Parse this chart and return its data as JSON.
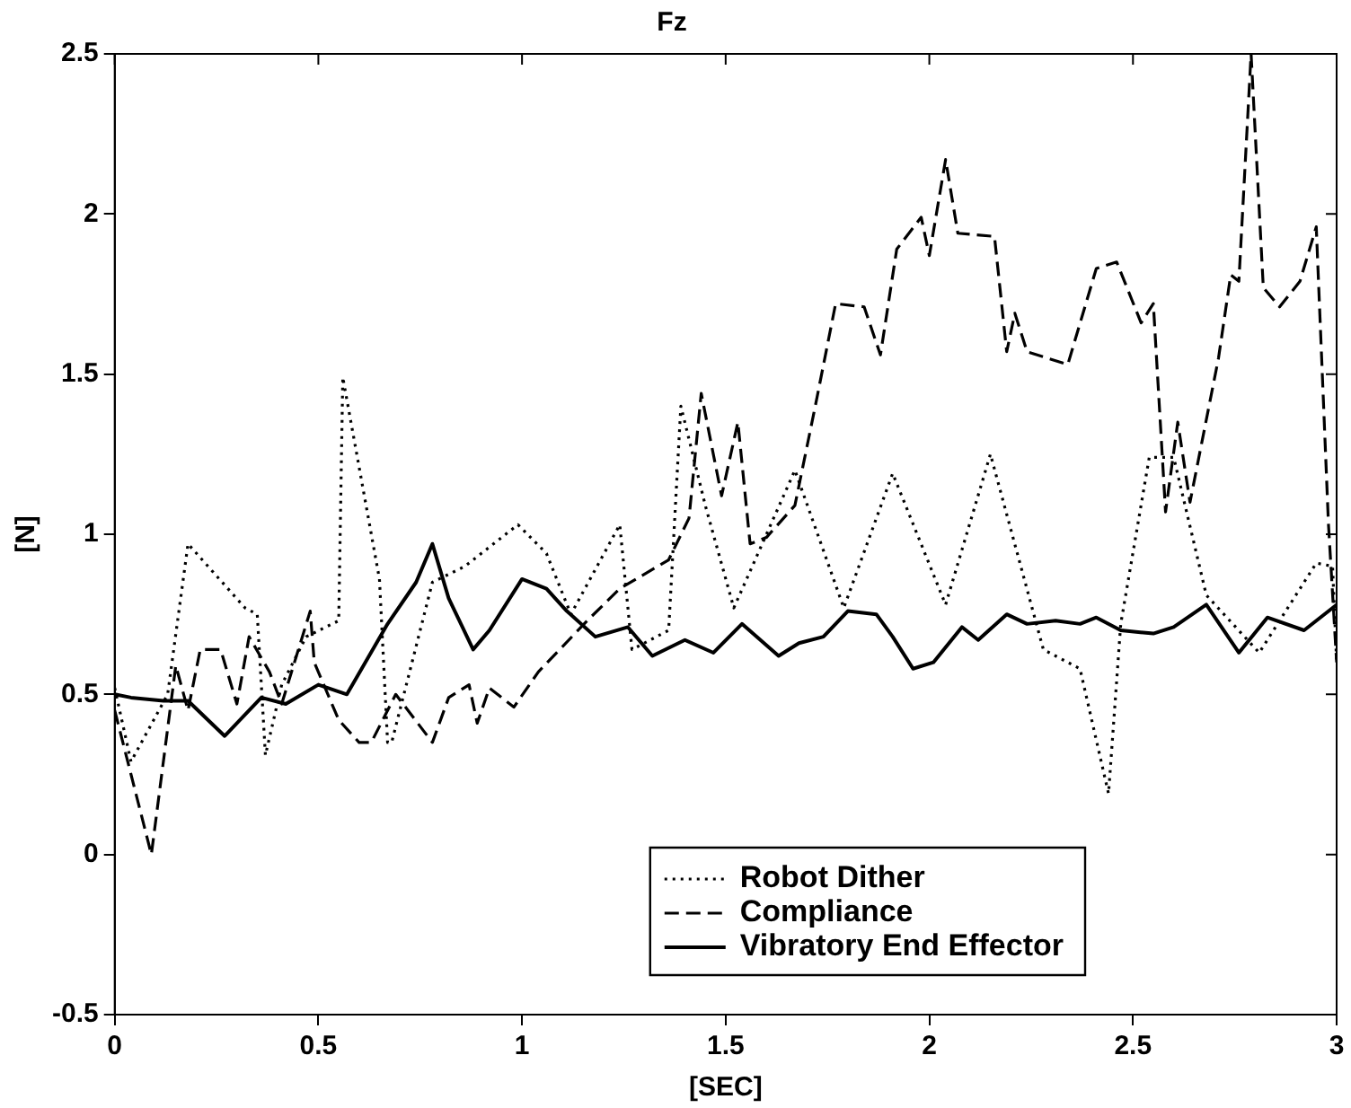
{
  "chart_data": {
    "type": "line",
    "title": "Fz",
    "xlabel": "[SEC]",
    "ylabel": "[N]",
    "xlim": [
      0,
      3
    ],
    "xticks": [
      0,
      0.5,
      1,
      1.5,
      2,
      2.5,
      3
    ],
    "ylim": [
      -0.5,
      2.5
    ],
    "yticks": [
      -0.5,
      0,
      0.5,
      1,
      1.5,
      2,
      2.5
    ],
    "grid": false,
    "legend": "bottom right",
    "marker": "none",
    "series": [
      {
        "name": "Robot Dither",
        "color": "#000000",
        "line_style": "dotted",
        "x": [
          0,
          0.04,
          0.13,
          0.18,
          0.32,
          0.35,
          0.37,
          0.41,
          0.47,
          0.55,
          0.56,
          0.65,
          0.67,
          0.68,
          0.78,
          0.86,
          0.99,
          1.06,
          1.12,
          1.24,
          1.27,
          1.36,
          1.39,
          1.45,
          1.52,
          1.67,
          1.79,
          1.91,
          2.04,
          2.15,
          2.28,
          2.37,
          2.44,
          2.47,
          2.54,
          2.6,
          2.68,
          2.81,
          2.95,
          2.99,
          3
        ],
        "values": [
          0.52,
          0.29,
          0.5,
          0.97,
          0.77,
          0.75,
          0.31,
          0.53,
          0.68,
          0.73,
          1.49,
          0.86,
          0.35,
          0.35,
          0.85,
          0.9,
          1.03,
          0.94,
          0.75,
          1.03,
          0.64,
          0.7,
          1.4,
          1.09,
          0.77,
          1.2,
          0.77,
          1.19,
          0.78,
          1.25,
          0.64,
          0.58,
          0.19,
          0.72,
          1.24,
          1.24,
          0.81,
          0.63,
          0.91,
          0.9,
          0.6
        ]
      },
      {
        "name": "Compliance",
        "color": "#000000",
        "line_style": "dashed",
        "x": [
          0,
          0.09,
          0.15,
          0.18,
          0.21,
          0.26,
          0.3,
          0.33,
          0.38,
          0.41,
          0.48,
          0.49,
          0.55,
          0.6,
          0.63,
          0.69,
          0.78,
          0.82,
          0.87,
          0.89,
          0.92,
          0.98,
          1.04,
          1.16,
          1.24,
          1.36,
          1.41,
          1.44,
          1.49,
          1.53,
          1.56,
          1.6,
          1.67,
          1.72,
          1.77,
          1.84,
          1.88,
          1.92,
          1.98,
          2.0,
          2.04,
          2.07,
          2.16,
          2.19,
          2.21,
          2.24,
          2.34,
          2.41,
          2.46,
          2.52,
          2.55,
          2.58,
          2.61,
          2.64,
          2.71,
          2.74,
          2.76,
          2.79,
          2.82,
          2.86,
          2.91,
          2.95,
          2.98,
          3
        ],
        "values": [
          0.45,
          0.0,
          0.59,
          0.45,
          0.64,
          0.64,
          0.47,
          0.68,
          0.57,
          0.47,
          0.76,
          0.6,
          0.42,
          0.35,
          0.35,
          0.5,
          0.35,
          0.49,
          0.53,
          0.41,
          0.52,
          0.46,
          0.57,
          0.73,
          0.83,
          0.92,
          1.05,
          1.44,
          1.12,
          1.35,
          0.97,
          0.99,
          1.09,
          1.4,
          1.72,
          1.71,
          1.56,
          1.89,
          1.99,
          1.87,
          2.17,
          1.94,
          1.93,
          1.57,
          1.69,
          1.57,
          1.53,
          1.83,
          1.85,
          1.66,
          1.72,
          1.07,
          1.35,
          1.1,
          1.55,
          1.81,
          1.79,
          2.5,
          1.77,
          1.71,
          1.79,
          1.96,
          1.03,
          0.6
        ]
      },
      {
        "name": "Vibratory End Effector",
        "color": "#000000",
        "line_style": "solid",
        "x": [
          0,
          0.04,
          0.12,
          0.18,
          0.27,
          0.36,
          0.42,
          0.5,
          0.57,
          0.67,
          0.74,
          0.78,
          0.82,
          0.88,
          0.92,
          1.0,
          1.06,
          1.11,
          1.18,
          1.26,
          1.32,
          1.4,
          1.47,
          1.54,
          1.63,
          1.68,
          1.74,
          1.8,
          1.87,
          1.91,
          1.96,
          2.01,
          2.08,
          2.12,
          2.19,
          2.24,
          2.31,
          2.37,
          2.41,
          2.47,
          2.55,
          2.6,
          2.68,
          2.76,
          2.83,
          2.92,
          3
        ],
        "values": [
          0.5,
          0.49,
          0.48,
          0.48,
          0.37,
          0.49,
          0.47,
          0.53,
          0.5,
          0.72,
          0.85,
          0.97,
          0.8,
          0.64,
          0.7,
          0.86,
          0.83,
          0.76,
          0.68,
          0.71,
          0.62,
          0.67,
          0.63,
          0.72,
          0.62,
          0.66,
          0.68,
          0.76,
          0.75,
          0.68,
          0.58,
          0.6,
          0.71,
          0.67,
          0.75,
          0.72,
          0.73,
          0.72,
          0.74,
          0.7,
          0.69,
          0.71,
          0.78,
          0.63,
          0.74,
          0.7,
          0.78
        ]
      }
    ]
  }
}
